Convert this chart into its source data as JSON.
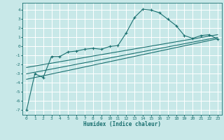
{
  "xlabel": "Humidex (Indice chaleur)",
  "bg_color": "#c8e8e8",
  "grid_color": "#ffffff",
  "line_color": "#1a7070",
  "xlim": [
    -0.5,
    23.5
  ],
  "ylim": [
    -7.5,
    4.8
  ],
  "yticks": [
    -7,
    -6,
    -5,
    -4,
    -3,
    -2,
    -1,
    0,
    1,
    2,
    3,
    4
  ],
  "xticks": [
    0,
    1,
    2,
    3,
    4,
    5,
    6,
    7,
    8,
    9,
    10,
    11,
    12,
    13,
    14,
    15,
    16,
    17,
    18,
    19,
    20,
    21,
    22,
    23
  ],
  "curve1_x": [
    0,
    1,
    2,
    3,
    4,
    5,
    6,
    7,
    8,
    9,
    10,
    11,
    12,
    13,
    14,
    15,
    16,
    17,
    18,
    19,
    20,
    21,
    22,
    23
  ],
  "curve1_y": [
    -7.0,
    -3.0,
    -3.4,
    -1.1,
    -1.1,
    -0.6,
    -0.5,
    -0.3,
    -0.2,
    -0.3,
    0.0,
    0.1,
    1.5,
    3.2,
    4.1,
    4.0,
    3.7,
    3.0,
    2.3,
    1.2,
    0.9,
    1.2,
    1.3,
    0.8
  ],
  "line1_x": [
    0,
    23
  ],
  "line1_y": [
    -3.0,
    1.0
  ],
  "line2_x": [
    0,
    23
  ],
  "line2_y": [
    -2.3,
    1.3
  ],
  "line3_x": [
    0,
    23
  ],
  "line3_y": [
    -3.6,
    0.85
  ]
}
